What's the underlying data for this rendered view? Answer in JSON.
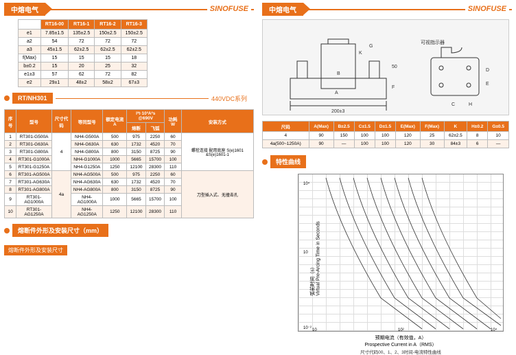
{
  "header": {
    "cn": "中熔电气",
    "en": "SINOFUSE"
  },
  "t1": {
    "cols": [
      "",
      "RT16-00",
      "RT16-1",
      "RT16-2",
      "RT16-3"
    ],
    "rows": [
      [
        "e1",
        "7.85±1.5",
        "135±2.5",
        "150±2.5",
        "150±2.5"
      ],
      [
        "a2",
        "54",
        "72",
        "72",
        "72"
      ],
      [
        "a3",
        "45±1.5",
        "62±2.5",
        "62±2.5",
        "62±2.5"
      ],
      [
        "f(Max)",
        "15",
        "15",
        "15",
        "18"
      ],
      [
        "b±0.2",
        "15",
        "20",
        "25",
        "32"
      ],
      [
        "e1±3",
        "57",
        "62",
        "72",
        "82"
      ],
      [
        "e2",
        "29±1",
        "48±2",
        "58±2",
        "67±3"
      ]
    ]
  },
  "sectA": {
    "title": "RT/NH301",
    "sub": "440VDC系列"
  },
  "t2": {
    "h1": [
      "序号",
      "型号",
      "尺寸代码",
      "等同型号",
      "额定电流 A",
      "I²t·10³A²s @690V",
      "",
      "功耗 W",
      "安装方式"
    ],
    "h2": [
      "",
      "",
      "",
      "",
      "",
      "熔断",
      "飞弧",
      "",
      ""
    ],
    "rows": [
      [
        "1",
        "RT301-G500A",
        "4",
        "NH4-G500A",
        "500",
        "975",
        "2250",
        "60",
        ""
      ],
      [
        "2",
        "RT301-G630A",
        "",
        "NH4-G630A",
        "630",
        "1732",
        "4520",
        "70",
        "螺栓连接 配用底座 S(e)1601 &S(e)1601-1"
      ],
      [
        "3",
        "RT301-G800A",
        "",
        "NH4-G800A",
        "800",
        "3150",
        "8725",
        "90",
        ""
      ],
      [
        "4",
        "RT301-G1000A",
        "",
        "NH4-G1000A",
        "1000",
        "5665",
        "15700",
        "100",
        ""
      ],
      [
        "5",
        "RT301-G1250A",
        "",
        "NH4-G1250A",
        "1250",
        "12100",
        "28300",
        "110",
        ""
      ],
      [
        "6",
        "RT301-AG500A",
        "4a",
        "NH4-AG500A",
        "500",
        "975",
        "2250",
        "60",
        ""
      ],
      [
        "7",
        "RT301-AG630A",
        "",
        "NH4-AG630A",
        "630",
        "1732",
        "4520",
        "70",
        "刀型插入式、无撞击孔"
      ],
      [
        "8",
        "RT301-AG800A",
        "",
        "NH4-AG800A",
        "800",
        "3150",
        "8725",
        "90",
        ""
      ],
      [
        "9",
        "RT301-AG1000A",
        "",
        "NH4-AG1000A",
        "1000",
        "5665",
        "15700",
        "100",
        ""
      ],
      [
        "10",
        "RT301-AG1250A",
        "",
        "NH4-AG1250A",
        "1250",
        "12100",
        "28300",
        "110",
        ""
      ]
    ]
  },
  "sectB": "熔断件外形及安装尺寸（mm）",
  "tag": "熔断件外形及安装尺寸",
  "t3": {
    "cols": [
      "尺码",
      "A(Max)",
      "B±2.5",
      "C±1.5",
      "D±1.5",
      "E(Max)",
      "F(Max)",
      "K",
      "H±0.2",
      "G±0.5"
    ],
    "rows": [
      [
        "4",
        "90",
        "150",
        "100",
        "100",
        "120",
        "25",
        "62±2.5",
        "8",
        "10"
      ],
      [
        "4a(500~1250A)",
        "90",
        "—",
        "100",
        "100",
        "120",
        "30",
        "84±3",
        "6",
        "—"
      ]
    ]
  },
  "sectC": "特性曲线",
  "chart": {
    "y": "弧前时间（s）",
    "y_en": "Virtual Pre-Arcing Time in Seconds",
    "x": "预期电流（有效值，A）",
    "x_en": "Prospective Current in A（RMS）",
    "note": "尺寸代码00、1、2、3时间-电流特性曲线"
  },
  "dwg": {
    "dim200": "200±3",
    "indicator": "可视指示器"
  }
}
